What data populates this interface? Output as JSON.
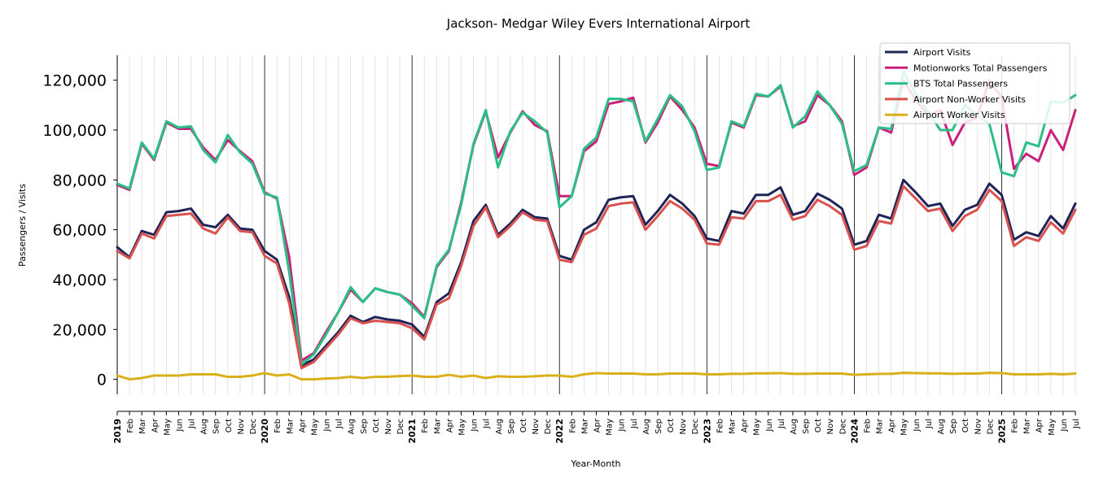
{
  "chart_data": {
    "type": "line",
    "title": "Jackson- Medgar Wiley Evers International Airport",
    "xlabel": "Year-Month",
    "ylabel": "Passengers / Visits",
    "ylim": [
      -6000,
      130000
    ],
    "yticks": [
      0,
      20000,
      40000,
      60000,
      80000,
      100000,
      120000
    ],
    "ytick_labels": [
      "0",
      "20,000",
      "40,000",
      "60,000",
      "80,000",
      "100,000",
      "120,000"
    ],
    "grid": "vertical monthly gridlines; solid vertical lines at each January",
    "legend_position": "top-right",
    "x": [
      "2019",
      "Feb",
      "Mar",
      "Apr",
      "May",
      "Jun",
      "Jul",
      "Aug",
      "Sep",
      "Oct",
      "Nov",
      "Dec",
      "2020",
      "Feb",
      "Mar",
      "Apr",
      "May",
      "Jun",
      "Jul",
      "Aug",
      "Sep",
      "Oct",
      "Nov",
      "Dec",
      "2021",
      "Feb",
      "Mar",
      "Apr",
      "May",
      "Jun",
      "Jul",
      "Aug",
      "Sep",
      "Oct",
      "Nov",
      "Dec",
      "2022",
      "Feb",
      "Mar",
      "Apr",
      "May",
      "Jun",
      "Jul",
      "Aug",
      "Sep",
      "Oct",
      "Nov",
      "Dec",
      "2023",
      "Feb",
      "Mar",
      "Apr",
      "May",
      "Jun",
      "Jul",
      "Aug",
      "Sep",
      "Oct",
      "Nov",
      "Dec",
      "2024",
      "Feb",
      "Mar",
      "Apr",
      "May",
      "Jun",
      "Jul",
      "Aug",
      "Sep",
      "Oct",
      "Nov",
      "Dec",
      "2025",
      "Feb",
      "Mar",
      "Apr",
      "May",
      "Jun",
      "Jul"
    ],
    "series": [
      {
        "name": "Airport Visits",
        "color": "#1f2457",
        "values": [
          53000,
          49000,
          59500,
          58000,
          67000,
          67500,
          68500,
          62000,
          61000,
          66000,
          60500,
          60000,
          51500,
          48000,
          33000,
          5500,
          8000,
          13500,
          19000,
          25500,
          23000,
          25000,
          24000,
          23500,
          22000,
          17000,
          31000,
          34500,
          47000,
          63500,
          70000,
          58000,
          62500,
          68000,
          65000,
          64500,
          49500,
          48000,
          60000,
          63000,
          72000,
          73000,
          73500,
          62000,
          67500,
          74000,
          70500,
          65500,
          56500,
          55500,
          67500,
          66500,
          74000,
          74000,
          77000,
          66000,
          67500,
          74500,
          72000,
          68500,
          54000,
          55500,
          66000,
          64500,
          80000,
          75000,
          69500,
          70500,
          61500,
          68000,
          70000,
          78500,
          74000,
          56000,
          59000,
          57500,
          65500,
          60500,
          70500
        ]
      },
      {
        "name": "Motionworks Total Passengers",
        "color": "#c9207a",
        "values": [
          78000,
          76000,
          94500,
          88000,
          103000,
          100500,
          100500,
          93000,
          88000,
          96000,
          91500,
          87500,
          75000,
          72500,
          49000,
          7500,
          10500,
          19000,
          27000,
          36000,
          31000,
          36500,
          35000,
          34000,
          30500,
          25000,
          45000,
          51500,
          71000,
          94000,
          107500,
          89000,
          99000,
          107500,
          102000,
          99500,
          73500,
          73500,
          91500,
          95500,
          110500,
          111500,
          113000,
          95000,
          103000,
          113500,
          108000,
          101000,
          86500,
          85500,
          103000,
          101000,
          114000,
          113500,
          117500,
          101500,
          103500,
          114000,
          110000,
          103500,
          82000,
          85000,
          101000,
          99000,
          120000,
          112000,
          106000,
          108000,
          94000,
          103000,
          105000,
          120000,
          113000,
          84500,
          90500,
          87500,
          100000,
          92000,
          108000
        ]
      },
      {
        "name": "BTS Total Passengers",
        "color": "#2bbf87",
        "values": [
          78500,
          76500,
          95000,
          88500,
          103500,
          101000,
          101500,
          92000,
          87000,
          98000,
          91000,
          86500,
          74500,
          73000,
          43000,
          6000,
          10000,
          18000,
          27000,
          37000,
          31000,
          36500,
          35000,
          34000,
          29500,
          24500,
          45500,
          52000,
          70000,
          94500,
          108000,
          85000,
          99500,
          107000,
          103500,
          99000,
          69000,
          73500,
          92500,
          97000,
          112500,
          112500,
          111500,
          95500,
          104500,
          114000,
          109500,
          99500,
          84000,
          85000,
          103500,
          101500,
          114500,
          113500,
          118000,
          101000,
          105500,
          115500,
          110000,
          102500,
          83500,
          86000,
          101000,
          100500,
          123500,
          114500,
          107500,
          100000,
          100000,
          110000,
          106000,
          102500,
          83000,
          81500,
          95000,
          93500,
          111500,
          111000,
          114000
        ]
      },
      {
        "name": "Airport Non-Worker Visits",
        "color": "#d9514e",
        "values": [
          51500,
          48500,
          58500,
          56500,
          65500,
          66000,
          66500,
          60500,
          58500,
          65000,
          59500,
          59000,
          49500,
          46500,
          30500,
          4500,
          7000,
          12500,
          18000,
          24500,
          22500,
          23500,
          23000,
          22500,
          20500,
          16000,
          30000,
          32500,
          45500,
          61500,
          69000,
          57000,
          61500,
          67000,
          64000,
          63500,
          48000,
          47000,
          58000,
          60500,
          69500,
          70500,
          71000,
          60000,
          65500,
          71500,
          68500,
          64000,
          54500,
          54000,
          65000,
          64500,
          71500,
          71500,
          74000,
          64000,
          65500,
          72000,
          69500,
          66000,
          52000,
          53500,
          63500,
          62500,
          77500,
          72500,
          67500,
          68500,
          59500,
          65500,
          68000,
          76000,
          71500,
          53500,
          57000,
          55500,
          63000,
          58500,
          68000
        ]
      },
      {
        "name": "Airport Worker Visits",
        "color": "#d9b01a",
        "values": [
          1500,
          0,
          500,
          1500,
          1500,
          1500,
          2000,
          2000,
          2000,
          1000,
          1000,
          1500,
          2500,
          1500,
          2000,
          0,
          0,
          300,
          500,
          1000,
          500,
          1000,
          1000,
          1300,
          1500,
          1000,
          1000,
          1800,
          1000,
          1500,
          500,
          1200,
          1000,
          1000,
          1200,
          1500,
          1500,
          1000,
          2000,
          2500,
          2300,
          2300,
          2300,
          2000,
          2000,
          2300,
          2300,
          2300,
          2000,
          2000,
          2200,
          2200,
          2400,
          2400,
          2500,
          2200,
          2200,
          2300,
          2300,
          2300,
          1800,
          2000,
          2200,
          2200,
          2600,
          2500,
          2400,
          2400,
          2200,
          2300,
          2300,
          2600,
          2500,
          2000,
          2000,
          2000,
          2200,
          2000,
          2300
        ]
      }
    ]
  }
}
